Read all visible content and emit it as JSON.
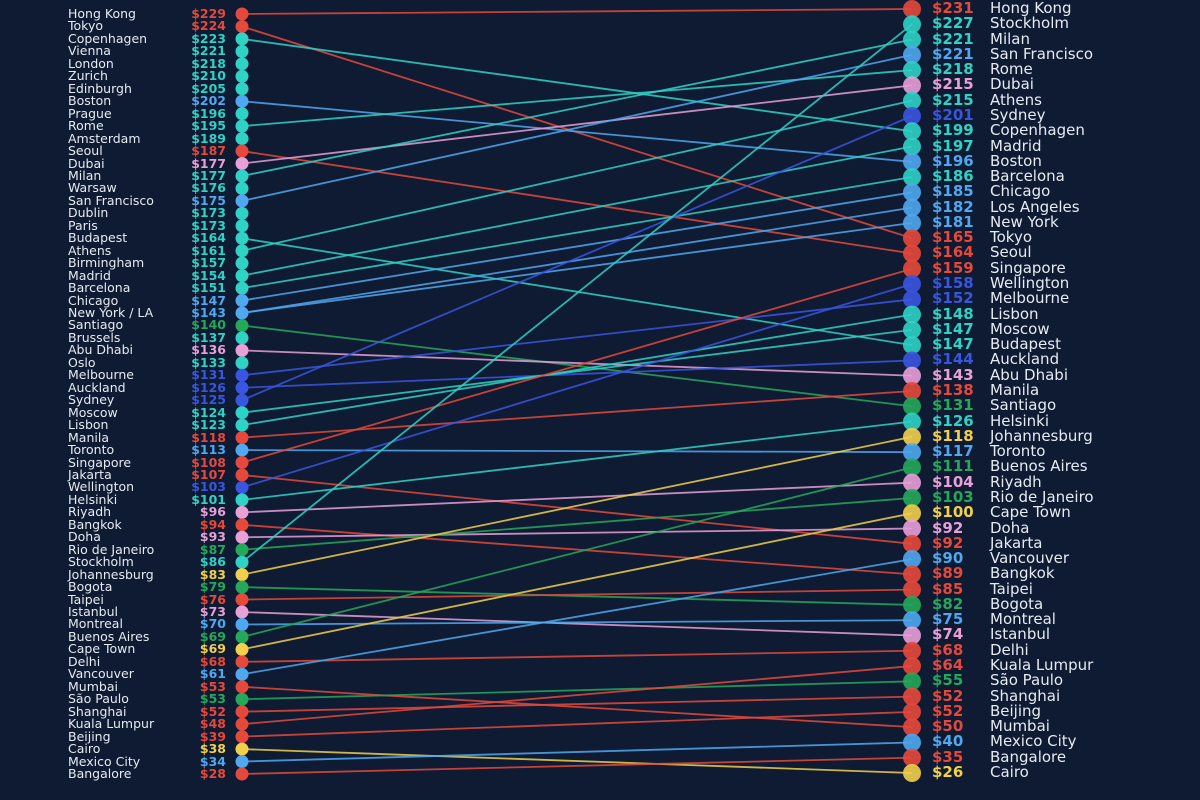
{
  "chart_data": {
    "type": "slope",
    "title": "",
    "xlabel": "",
    "ylabel": "",
    "palette": {
      "background": "#0f1b33",
      "teal": "#2ed3c6",
      "red": "#e5493b",
      "blue": "#4fa8f0",
      "dark_blue": "#3a55e0",
      "pink": "#e8a0d8",
      "green": "#25a85a",
      "yellow": "#f1d04b"
    },
    "left_column": [
      {
        "city": "Hong Kong",
        "value": "$229",
        "v": 229,
        "color": "#e5493b"
      },
      {
        "city": "Tokyo",
        "value": "$224",
        "v": 224,
        "color": "#e5493b"
      },
      {
        "city": "Copenhagen",
        "value": "$223",
        "v": 223,
        "color": "#2ed3c6"
      },
      {
        "city": "Vienna",
        "value": "$221",
        "v": 221,
        "color": "#2ed3c6"
      },
      {
        "city": "London",
        "value": "$218",
        "v": 218,
        "color": "#2ed3c6"
      },
      {
        "city": "Zurich",
        "value": "$210",
        "v": 210,
        "color": "#2ed3c6"
      },
      {
        "city": "Edinburgh",
        "value": "$205",
        "v": 205,
        "color": "#2ed3c6"
      },
      {
        "city": "Boston",
        "value": "$202",
        "v": 202,
        "color": "#4fa8f0"
      },
      {
        "city": "Prague",
        "value": "$196",
        "v": 196,
        "color": "#2ed3c6"
      },
      {
        "city": "Rome",
        "value": "$195",
        "v": 195,
        "color": "#2ed3c6"
      },
      {
        "city": "Amsterdam",
        "value": "$189",
        "v": 189,
        "color": "#2ed3c6"
      },
      {
        "city": "Seoul",
        "value": "$187",
        "v": 187,
        "color": "#e5493b"
      },
      {
        "city": "Dubai",
        "value": "$177",
        "v": 177,
        "color": "#e8a0d8"
      },
      {
        "city": "Milan",
        "value": "$177",
        "v": 177,
        "color": "#2ed3c6"
      },
      {
        "city": "Warsaw",
        "value": "$176",
        "v": 176,
        "color": "#2ed3c6"
      },
      {
        "city": "San Francisco",
        "value": "$175",
        "v": 175,
        "color": "#4fa8f0"
      },
      {
        "city": "Dublin",
        "value": "$173",
        "v": 173,
        "color": "#2ed3c6"
      },
      {
        "city": "Paris",
        "value": "$173",
        "v": 173,
        "color": "#2ed3c6"
      },
      {
        "city": "Budapest",
        "value": "$164",
        "v": 164,
        "color": "#2ed3c6"
      },
      {
        "city": "Athens",
        "value": "$161",
        "v": 161,
        "color": "#2ed3c6"
      },
      {
        "city": "Birmingham",
        "value": "$157",
        "v": 157,
        "color": "#2ed3c6"
      },
      {
        "city": "Madrid",
        "value": "$154",
        "v": 154,
        "color": "#2ed3c6"
      },
      {
        "city": "Barcelona",
        "value": "$151",
        "v": 151,
        "color": "#2ed3c6"
      },
      {
        "city": "Chicago",
        "value": "$147",
        "v": 147,
        "color": "#4fa8f0"
      },
      {
        "city": "New York / LA",
        "value": "$143",
        "v": 143,
        "color": "#4fa8f0"
      },
      {
        "city": "Santiago",
        "value": "$140",
        "v": 140,
        "color": "#25a85a"
      },
      {
        "city": "Brussels",
        "value": "$137",
        "v": 137,
        "color": "#2ed3c6"
      },
      {
        "city": "Abu Dhabi",
        "value": "$136",
        "v": 136,
        "color": "#e8a0d8"
      },
      {
        "city": "Oslo",
        "value": "$133",
        "v": 133,
        "color": "#2ed3c6"
      },
      {
        "city": "Melbourne",
        "value": "$131",
        "v": 131,
        "color": "#3a55e0"
      },
      {
        "city": "Auckland",
        "value": "$126",
        "v": 126,
        "color": "#3a55e0"
      },
      {
        "city": "Sydney",
        "value": "$125",
        "v": 125,
        "color": "#3a55e0"
      },
      {
        "city": "Moscow",
        "value": "$124",
        "v": 124,
        "color": "#2ed3c6"
      },
      {
        "city": "Lisbon",
        "value": "$123",
        "v": 123,
        "color": "#2ed3c6"
      },
      {
        "city": "Manila",
        "value": "$118",
        "v": 118,
        "color": "#e5493b"
      },
      {
        "city": "Toronto",
        "value": "$113",
        "v": 113,
        "color": "#4fa8f0"
      },
      {
        "city": "Singapore",
        "value": "$108",
        "v": 108,
        "color": "#e5493b"
      },
      {
        "city": "Jakarta",
        "value": "$107",
        "v": 107,
        "color": "#e5493b"
      },
      {
        "city": "Wellington",
        "value": "$103",
        "v": 103,
        "color": "#3a55e0"
      },
      {
        "city": "Helsinki",
        "value": "$101",
        "v": 101,
        "color": "#2ed3c6"
      },
      {
        "city": "Riyadh",
        "value": "$96",
        "v": 96,
        "color": "#e8a0d8"
      },
      {
        "city": "Bangkok",
        "value": "$94",
        "v": 94,
        "color": "#e5493b"
      },
      {
        "city": "Doha",
        "value": "$93",
        "v": 93,
        "color": "#e8a0d8"
      },
      {
        "city": "Rio de Janeiro",
        "value": "$87",
        "v": 87,
        "color": "#25a85a"
      },
      {
        "city": "Stockholm",
        "value": "$86",
        "v": 86,
        "color": "#2ed3c6"
      },
      {
        "city": "Johannesburg",
        "value": "$83",
        "v": 83,
        "color": "#f1d04b"
      },
      {
        "city": "Bogota",
        "value": "$79",
        "v": 79,
        "color": "#25a85a"
      },
      {
        "city": "Taipei",
        "value": "$76",
        "v": 76,
        "color": "#e5493b"
      },
      {
        "city": "Istanbul",
        "value": "$73",
        "v": 73,
        "color": "#e8a0d8"
      },
      {
        "city": "Montreal",
        "value": "$70",
        "v": 70,
        "color": "#4fa8f0"
      },
      {
        "city": "Buenos Aires",
        "value": "$69",
        "v": 69,
        "color": "#25a85a"
      },
      {
        "city": "Cape Town",
        "value": "$69",
        "v": 69,
        "color": "#f1d04b"
      },
      {
        "city": "Delhi",
        "value": "$68",
        "v": 68,
        "color": "#e5493b"
      },
      {
        "city": "Vancouver",
        "value": "$61",
        "v": 61,
        "color": "#4fa8f0"
      },
      {
        "city": "Mumbai",
        "value": "$53",
        "v": 53,
        "color": "#e5493b"
      },
      {
        "city": "São Paulo",
        "value": "$53",
        "v": 53,
        "color": "#25a85a"
      },
      {
        "city": "Shanghai",
        "value": "$52",
        "v": 52,
        "color": "#e5493b"
      },
      {
        "city": "Kuala Lumpur",
        "value": "$48",
        "v": 48,
        "color": "#e5493b"
      },
      {
        "city": "Beijing",
        "value": "$39",
        "v": 39,
        "color": "#e5493b"
      },
      {
        "city": "Cairo",
        "value": "$38",
        "v": 38,
        "color": "#f1d04b"
      },
      {
        "city": "Mexico City",
        "value": "$34",
        "v": 34,
        "color": "#4fa8f0"
      },
      {
        "city": "Bangalore",
        "value": "$28",
        "v": 28,
        "color": "#e5493b"
      }
    ],
    "right_column": [
      {
        "city": "Hong Kong",
        "value": "$231",
        "v": 231,
        "color": "#e5493b"
      },
      {
        "city": "Stockholm",
        "value": "$227",
        "v": 227,
        "color": "#2ed3c6"
      },
      {
        "city": "Milan",
        "value": "$221",
        "v": 221,
        "color": "#2ed3c6"
      },
      {
        "city": "San Francisco",
        "value": "$221",
        "v": 221,
        "color": "#4fa8f0"
      },
      {
        "city": "Rome",
        "value": "$218",
        "v": 218,
        "color": "#2ed3c6"
      },
      {
        "city": "Dubai",
        "value": "$215",
        "v": 215,
        "color": "#e8a0d8"
      },
      {
        "city": "Athens",
        "value": "$215",
        "v": 215,
        "color": "#2ed3c6"
      },
      {
        "city": "Sydney",
        "value": "$201",
        "v": 201,
        "color": "#3a55e0"
      },
      {
        "city": "Copenhagen",
        "value": "$199",
        "v": 199,
        "color": "#2ed3c6"
      },
      {
        "city": "Madrid",
        "value": "$197",
        "v": 197,
        "color": "#2ed3c6"
      },
      {
        "city": "Boston",
        "value": "$196",
        "v": 196,
        "color": "#4fa8f0"
      },
      {
        "city": "Barcelona",
        "value": "$186",
        "v": 186,
        "color": "#2ed3c6"
      },
      {
        "city": "Chicago",
        "value": "$185",
        "v": 185,
        "color": "#4fa8f0"
      },
      {
        "city": "Los Angeles",
        "value": "$182",
        "v": 182,
        "color": "#4fa8f0"
      },
      {
        "city": "New York",
        "value": "$181",
        "v": 181,
        "color": "#4fa8f0"
      },
      {
        "city": "Tokyo",
        "value": "$165",
        "v": 165,
        "color": "#e5493b"
      },
      {
        "city": "Seoul",
        "value": "$164",
        "v": 164,
        "color": "#e5493b"
      },
      {
        "city": "Singapore",
        "value": "$159",
        "v": 159,
        "color": "#e5493b"
      },
      {
        "city": "Wellington",
        "value": "$158",
        "v": 158,
        "color": "#3a55e0"
      },
      {
        "city": "Melbourne",
        "value": "$152",
        "v": 152,
        "color": "#3a55e0"
      },
      {
        "city": "Lisbon",
        "value": "$148",
        "v": 148,
        "color": "#2ed3c6"
      },
      {
        "city": "Moscow",
        "value": "$147",
        "v": 147,
        "color": "#2ed3c6"
      },
      {
        "city": "Budapest",
        "value": "$147",
        "v": 147,
        "color": "#2ed3c6"
      },
      {
        "city": "Auckland",
        "value": "$144",
        "v": 144,
        "color": "#3a55e0"
      },
      {
        "city": "Abu Dhabi",
        "value": "$143",
        "v": 143,
        "color": "#e8a0d8"
      },
      {
        "city": "Manila",
        "value": "$138",
        "v": 138,
        "color": "#e5493b"
      },
      {
        "city": "Santiago",
        "value": "$131",
        "v": 131,
        "color": "#25a85a"
      },
      {
        "city": "Helsinki",
        "value": "$126",
        "v": 126,
        "color": "#2ed3c6"
      },
      {
        "city": "Johannesburg",
        "value": "$118",
        "v": 118,
        "color": "#f1d04b"
      },
      {
        "city": "Toronto",
        "value": "$117",
        "v": 117,
        "color": "#4fa8f0"
      },
      {
        "city": "Buenos Aires",
        "value": "$111",
        "v": 111,
        "color": "#25a85a"
      },
      {
        "city": "Riyadh",
        "value": "$104",
        "v": 104,
        "color": "#e8a0d8"
      },
      {
        "city": "Rio de Janeiro",
        "value": "$103",
        "v": 103,
        "color": "#25a85a"
      },
      {
        "city": "Cape Town",
        "value": "$100",
        "v": 100,
        "color": "#f1d04b"
      },
      {
        "city": "Doha",
        "value": "$92",
        "v": 92,
        "color": "#e8a0d8"
      },
      {
        "city": "Jakarta",
        "value": "$92",
        "v": 92,
        "color": "#e5493b"
      },
      {
        "city": "Vancouver",
        "value": "$90",
        "v": 90,
        "color": "#4fa8f0"
      },
      {
        "city": "Bangkok",
        "value": "$89",
        "v": 89,
        "color": "#e5493b"
      },
      {
        "city": "Taipei",
        "value": "$85",
        "v": 85,
        "color": "#e5493b"
      },
      {
        "city": "Bogota",
        "value": "$82",
        "v": 82,
        "color": "#25a85a"
      },
      {
        "city": "Montreal",
        "value": "$75",
        "v": 75,
        "color": "#4fa8f0"
      },
      {
        "city": "Istanbul",
        "value": "$74",
        "v": 74,
        "color": "#e8a0d8"
      },
      {
        "city": "Delhi",
        "value": "$68",
        "v": 68,
        "color": "#e5493b"
      },
      {
        "city": "Kuala Lumpur",
        "value": "$64",
        "v": 64,
        "color": "#e5493b"
      },
      {
        "city": "São Paulo",
        "value": "$55",
        "v": 55,
        "color": "#25a85a"
      },
      {
        "city": "Shanghai",
        "value": "$52",
        "v": 52,
        "color": "#e5493b"
      },
      {
        "city": "Beijing",
        "value": "$52",
        "v": 52,
        "color": "#e5493b"
      },
      {
        "city": "Mumbai",
        "value": "$50",
        "v": 50,
        "color": "#e5493b"
      },
      {
        "city": "Mexico City",
        "value": "$40",
        "v": 40,
        "color": "#4fa8f0"
      },
      {
        "city": "Bangalore",
        "value": "$35",
        "v": 35,
        "color": "#e5493b"
      },
      {
        "city": "Cairo",
        "value": "$26",
        "v": 26,
        "color": "#f1d04b"
      }
    ],
    "layout": {
      "grid": false,
      "legend": "none"
    }
  }
}
